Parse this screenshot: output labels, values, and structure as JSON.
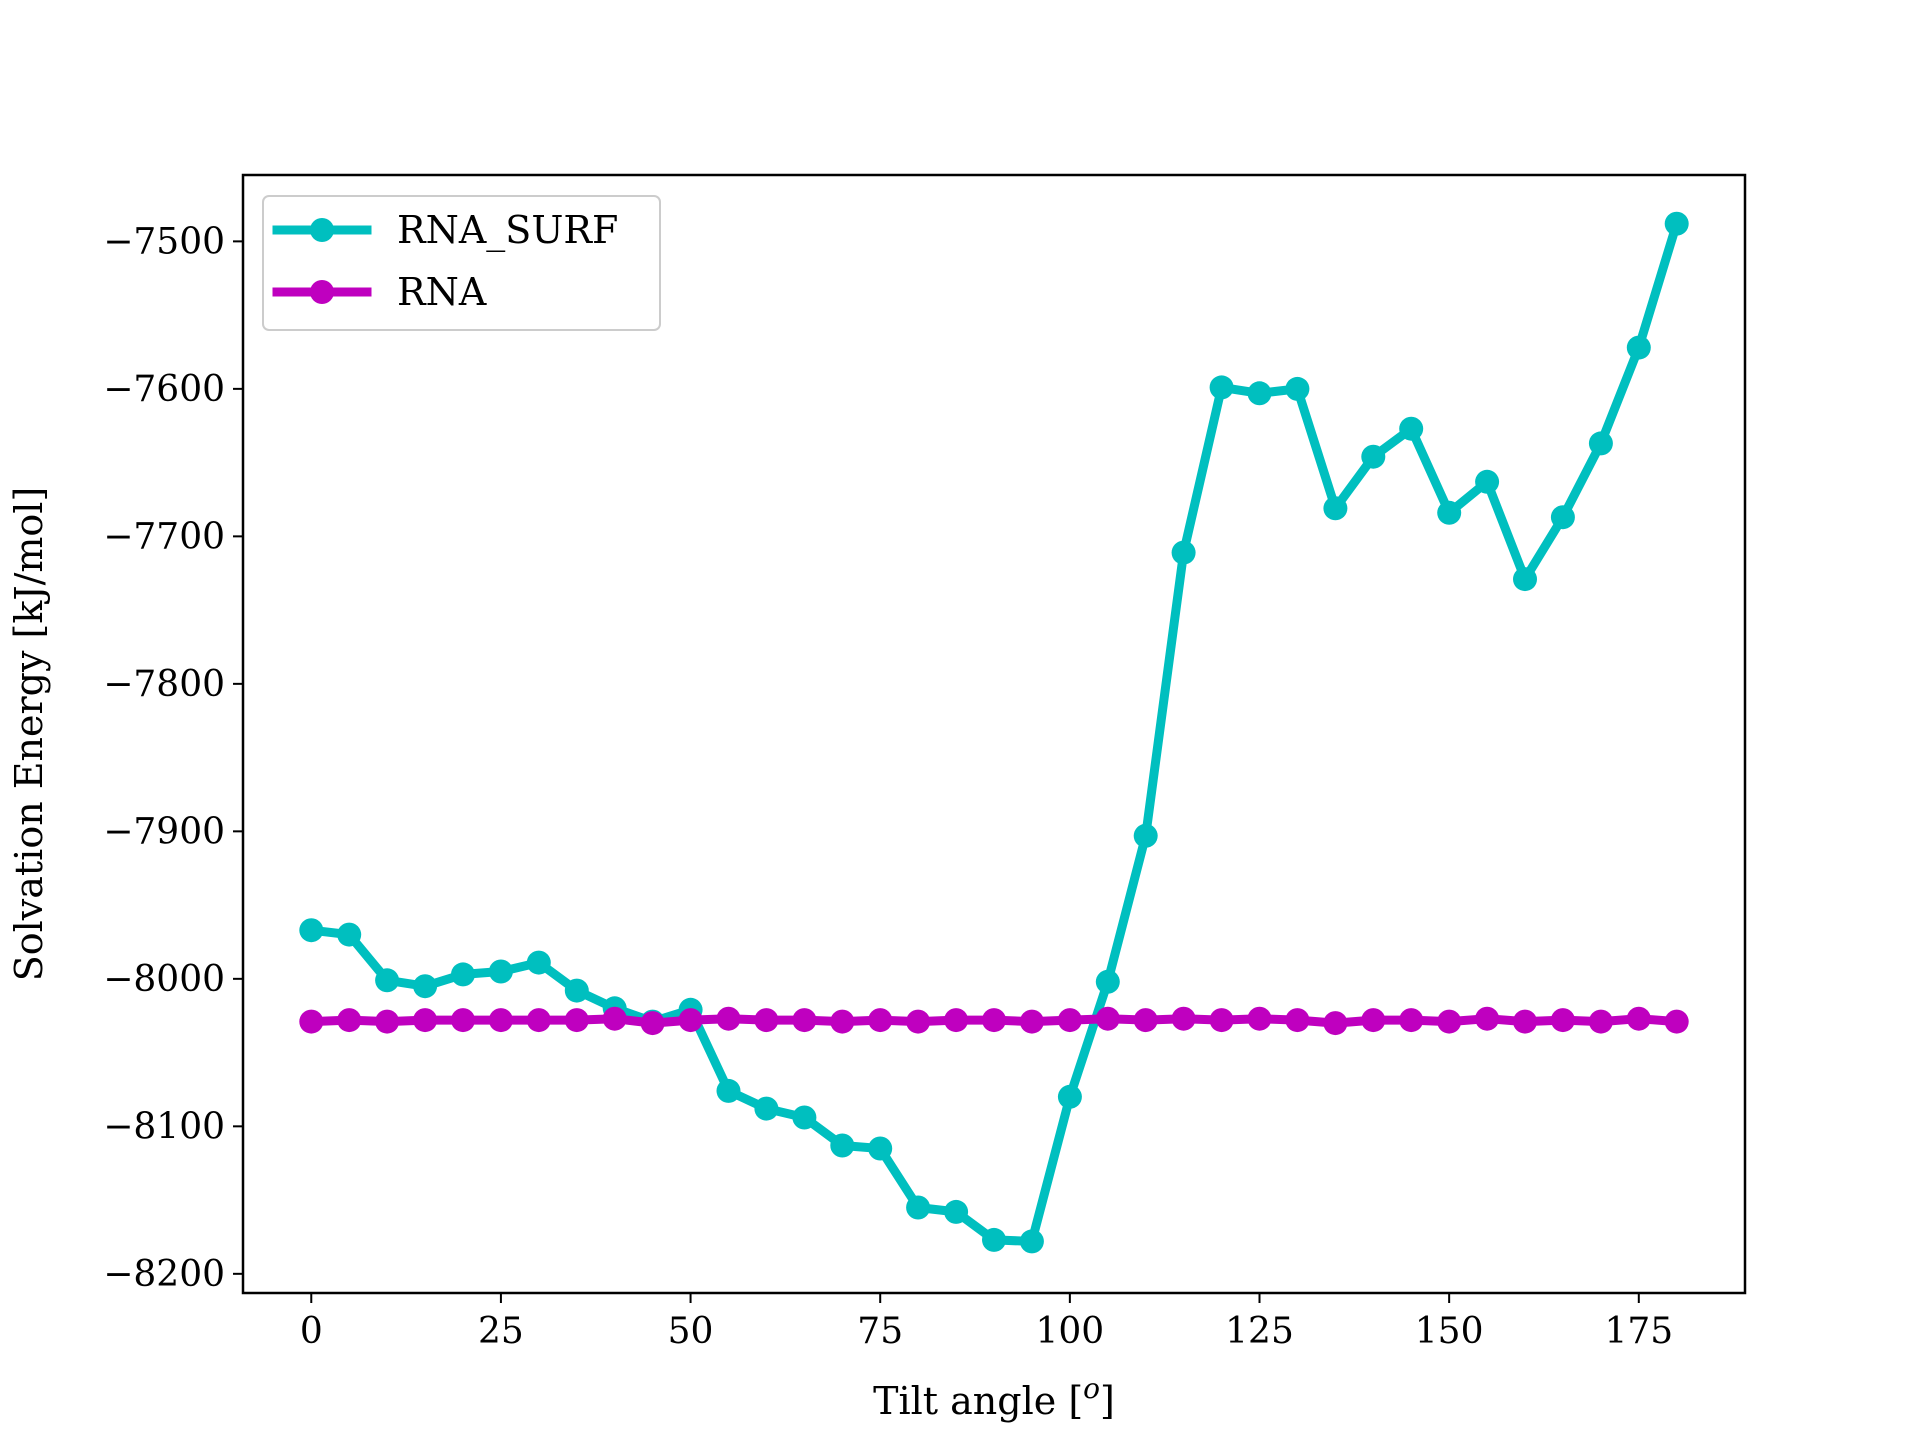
{
  "chart_data": {
    "type": "line",
    "title": "",
    "xlabel": "Tilt angle [",
    "xlabel_sup": "o",
    "xlabel_end": "]",
    "ylabel": "Solvation Energy [kJ/mol]",
    "xlim": [
      -9,
      189
    ],
    "ylim": [
      -8213,
      -7455
    ],
    "xticks": [
      0,
      25,
      50,
      75,
      100,
      125,
      150,
      175
    ],
    "yticks": [
      -7500,
      -7600,
      -7700,
      -7800,
      -7900,
      -8000,
      -8100,
      -8200
    ],
    "xtick_labels": [
      "0",
      "25",
      "50",
      "75",
      "100",
      "125",
      "150",
      "175"
    ],
    "ytick_labels": [
      "−7500",
      "−7600",
      "−7700",
      "−7800",
      "−7900",
      "−8000",
      "−8100",
      "−8200"
    ],
    "grid": false,
    "legend_position": "upper-left",
    "x": [
      0,
      5,
      10,
      15,
      20,
      25,
      30,
      35,
      40,
      45,
      50,
      55,
      60,
      65,
      70,
      75,
      80,
      85,
      90,
      95,
      100,
      105,
      110,
      115,
      120,
      125,
      130,
      135,
      140,
      145,
      150,
      155,
      160,
      165,
      170,
      175,
      180
    ],
    "series": [
      {
        "name": "RNA_SURF",
        "color": "#00bfbf",
        "values": [
          -7967,
          -7970,
          -8001,
          -8005,
          -7997,
          -7995,
          -7989,
          -8008,
          -8020,
          -8029,
          -8021,
          -8076,
          -8088,
          -8094,
          -8113,
          -8115,
          -8155,
          -8158,
          -8177,
          -8178,
          -8080,
          -8002,
          -7903,
          -7711,
          -7599,
          -7603,
          -7600,
          -7681,
          -7646,
          -7627,
          -7684,
          -7663,
          -7729,
          -7687,
          -7637,
          -7572,
          -7488
        ]
      },
      {
        "name": "RNA",
        "color": "#bf00bf",
        "values": [
          -8029,
          -8028,
          -8029,
          -8028,
          -8028,
          -8028,
          -8028,
          -8028,
          -8027,
          -8030,
          -8028,
          -8027,
          -8028,
          -8028,
          -8029,
          -8028,
          -8029,
          -8028,
          -8028,
          -8029,
          -8028,
          -8027,
          -8028,
          -8027,
          -8028,
          -8027,
          -8028,
          -8030,
          -8028,
          -8028,
          -8029,
          -8027,
          -8029,
          -8028,
          -8029,
          -8027,
          -8029
        ]
      }
    ]
  }
}
